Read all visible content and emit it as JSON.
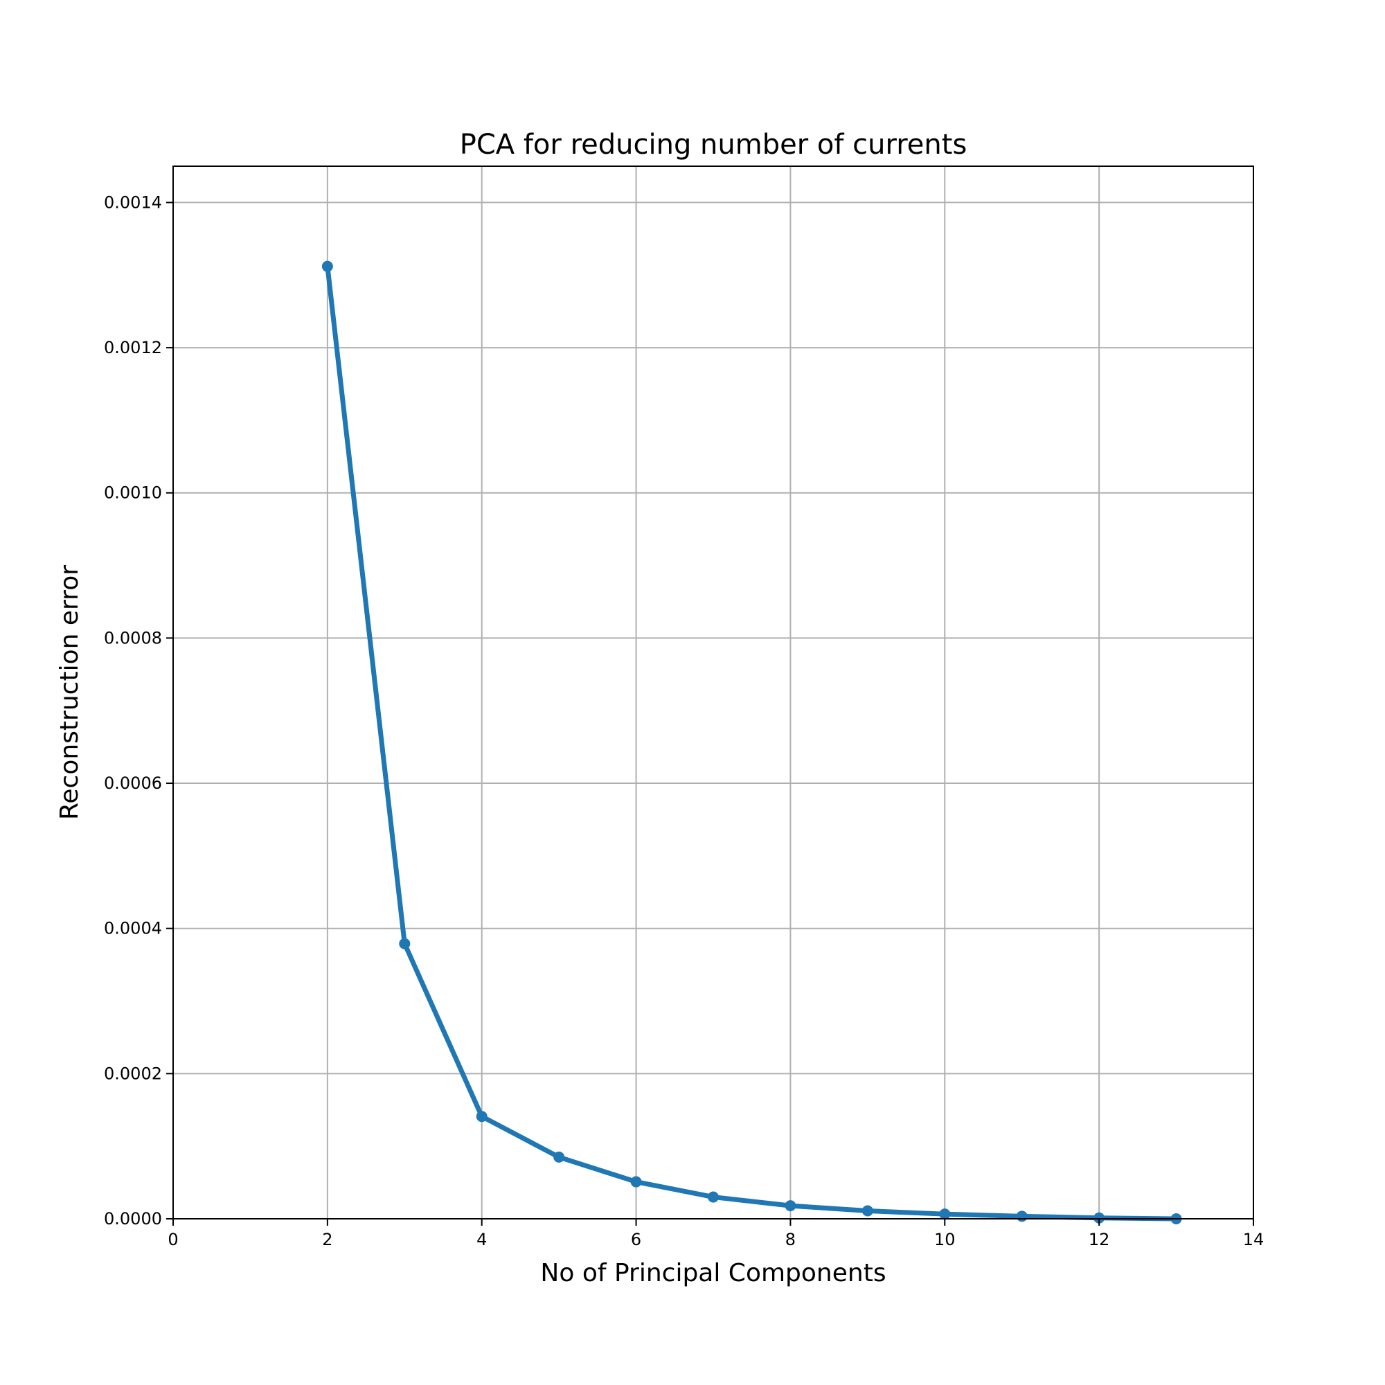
{
  "chart_data": {
    "type": "line",
    "title": "PCA for reducing number of currents",
    "xlabel": "No of Principal Components",
    "ylabel": "Reconstruction error",
    "xlim": [
      0,
      14
    ],
    "ylim": [
      0,
      0.00145
    ],
    "xticks": [
      0,
      2,
      4,
      6,
      8,
      10,
      12,
      14
    ],
    "xtick_labels": [
      "0",
      "2",
      "4",
      "6",
      "8",
      "10",
      "12",
      "14"
    ],
    "yticks": [
      0,
      0.0002,
      0.0004,
      0.0006,
      0.0008,
      0.001,
      0.0012,
      0.0014
    ],
    "ytick_labels": [
      "0.0000",
      "0.0002",
      "0.0004",
      "0.0006",
      "0.0008",
      "0.0010",
      "0.0012",
      "0.0014"
    ],
    "grid": true,
    "series": [
      {
        "color": "#1f77b4",
        "marker": "circle",
        "x": [
          2,
          3,
          4,
          5,
          6,
          7,
          8,
          9,
          10,
          11,
          12,
          13
        ],
        "y": [
          0.001312,
          0.000379,
          0.000141,
          8.5e-05,
          5.1e-05,
          3e-05,
          1.8e-05,
          1.1e-05,
          6.5e-06,
          3.5e-06,
          1.2e-06,
          0.0
        ]
      }
    ]
  }
}
